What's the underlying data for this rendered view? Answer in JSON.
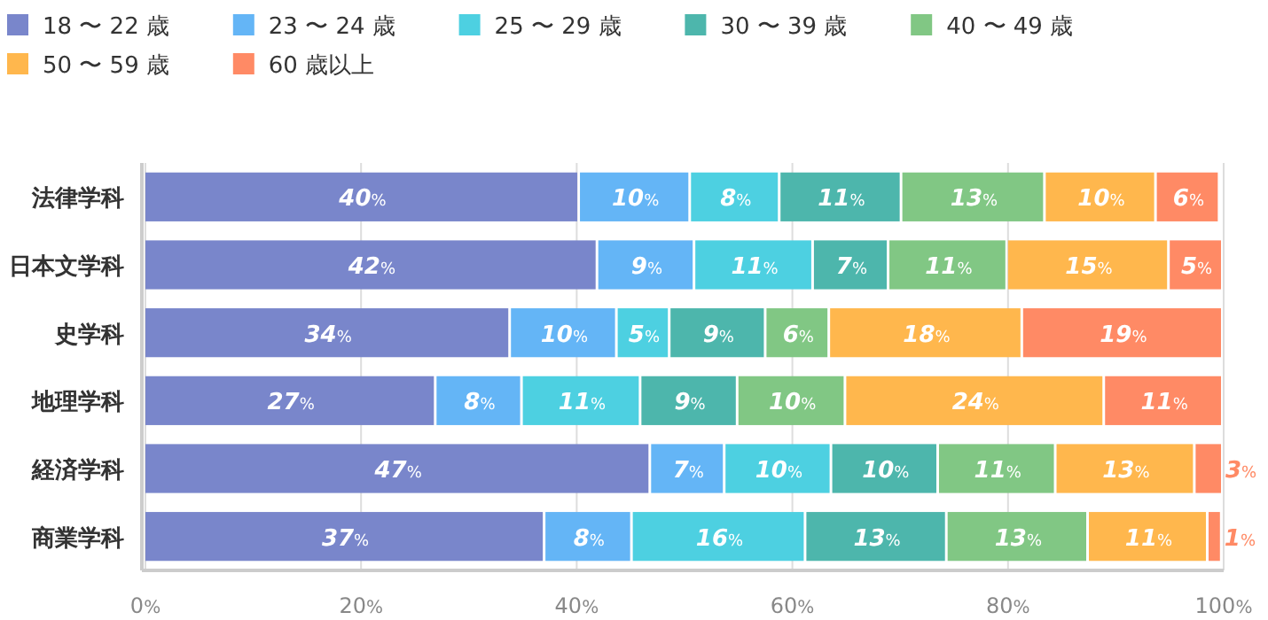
{
  "chart_data": {
    "type": "bar",
    "orientation": "horizontal",
    "stacked": true,
    "categories": [
      "法律学科",
      "日本文学科",
      "史学科",
      "地理学科",
      "経済学科",
      "商業学科"
    ],
    "series": [
      {
        "name": "18 〜 22 歳",
        "color": "#7986cb",
        "values": [
          40.3,
          42,
          33.9,
          27,
          46.9,
          37.1
        ],
        "value_labels": [
          "40%",
          "42%",
          "34%",
          "27%",
          "47%",
          "37%"
        ]
      },
      {
        "name": "23 〜 24 歳",
        "color": "#64b5f6",
        "values": [
          10.3,
          9,
          9.9,
          8,
          6.9,
          8.1
        ],
        "value_labels": [
          "10%",
          "9%",
          "10%",
          "8%",
          "7%",
          "8%"
        ]
      },
      {
        "name": "25 〜 29 歳",
        "color": "#4dd0e1",
        "values": [
          8.3,
          11,
          4.9,
          11,
          9.9,
          16.1
        ],
        "value_labels": [
          "8%",
          "11%",
          "5%",
          "11%",
          "10%",
          "16%"
        ]
      },
      {
        "name": "30 〜 39 歳",
        "color": "#4db6ac",
        "values": [
          11.3,
          7,
          8.9,
          9,
          9.9,
          13.1
        ],
        "value_labels": [
          "11%",
          "7%",
          "9%",
          "9%",
          "10%",
          "13%"
        ]
      },
      {
        "name": "40 〜 49 歳",
        "color": "#81c784",
        "values": [
          13.3,
          11,
          5.9,
          10,
          10.9,
          13.1
        ],
        "value_labels": [
          "13%",
          "11%",
          "6%",
          "10%",
          "11%",
          "13%"
        ]
      },
      {
        "name": "50 〜 59 歳",
        "color": "#ffb74d",
        "values": [
          10.3,
          15,
          17.9,
          24,
          12.9,
          11.1
        ],
        "value_labels": [
          "10%",
          "15%",
          "18%",
          "24%",
          "13%",
          "11%"
        ]
      },
      {
        "name": "60 歳以上",
        "color": "#ff8a65",
        "values": [
          5.9,
          5,
          18.6,
          11,
          2.6,
          1.3
        ],
        "value_labels": [
          "6%",
          "5%",
          "19%",
          "11%",
          "3%",
          "1%"
        ]
      }
    ],
    "xlim": [
      0,
      100
    ],
    "xticks": [
      {
        "value": 0,
        "label": "0%"
      },
      {
        "value": 20,
        "label": "20%"
      },
      {
        "value": 40,
        "label": "40%"
      },
      {
        "value": 60,
        "label": "60%"
      },
      {
        "value": 80,
        "label": "80%"
      },
      {
        "value": 100,
        "label": "100%"
      }
    ],
    "grid": "x",
    "legend": "top"
  }
}
